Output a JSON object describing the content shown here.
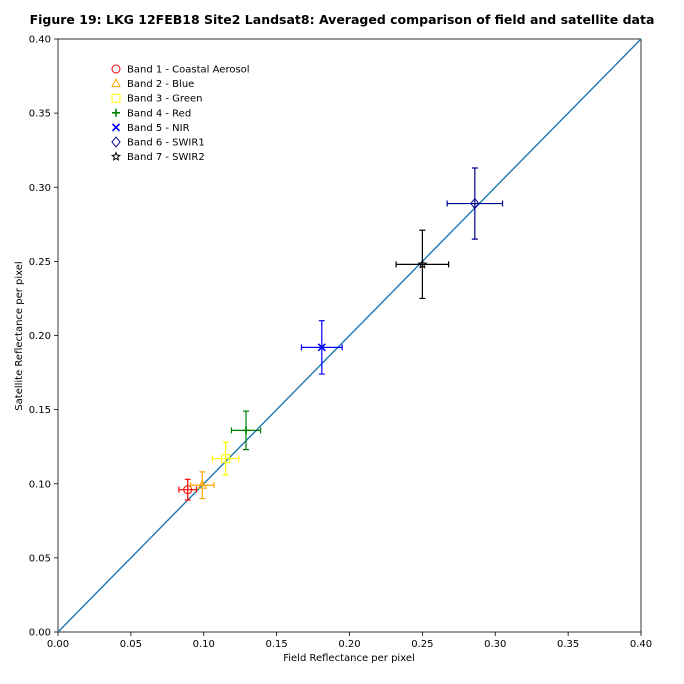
{
  "chart_data": {
    "type": "scatter",
    "title": "Figure 19: LKG 12FEB18 Site2 Landsat8: Averaged comparison of field and satellite data",
    "xlabel": "Field Reflectance per pixel",
    "ylabel": "Satellite Reflectance per pixel",
    "xlim": [
      0.0,
      0.4
    ],
    "ylim": [
      0.0,
      0.4
    ],
    "xticks": [
      "0.00",
      "0.05",
      "0.10",
      "0.15",
      "0.20",
      "0.25",
      "0.30",
      "0.35",
      "0.40"
    ],
    "yticks": [
      "0.00",
      "0.05",
      "0.10",
      "0.15",
      "0.20",
      "0.25",
      "0.30",
      "0.35",
      "0.40"
    ],
    "grid": false,
    "legend_position": "upper-left",
    "reference_line": {
      "from": [
        0.0,
        0.0
      ],
      "to": [
        0.4,
        0.4
      ],
      "color": "#1f77b4"
    },
    "series": [
      {
        "name": "Band 1 - Coastal Aerosol",
        "marker": "circle",
        "color": "#ff0000",
        "x": 0.089,
        "y": 0.096,
        "xerr": 0.006,
        "yerr": 0.007
      },
      {
        "name": "Band 2 - Blue",
        "marker": "triangle",
        "color": "#ffa500",
        "x": 0.099,
        "y": 0.099,
        "xerr": 0.008,
        "yerr": 0.009
      },
      {
        "name": "Band 3 - Green",
        "marker": "square",
        "color": "#ffff00",
        "x": 0.115,
        "y": 0.117,
        "xerr": 0.009,
        "yerr": 0.011
      },
      {
        "name": "Band 4 - Red",
        "marker": "plus",
        "color": "#008000",
        "x": 0.129,
        "y": 0.136,
        "xerr": 0.01,
        "yerr": 0.013
      },
      {
        "name": "Band 5 - NIR",
        "marker": "x",
        "color": "#0000ff",
        "x": 0.181,
        "y": 0.192,
        "xerr": 0.014,
        "yerr": 0.018
      },
      {
        "name": "Band 6 - SWIR1",
        "marker": "diamond",
        "color": "#00008b",
        "x": 0.286,
        "y": 0.289,
        "xerr": 0.019,
        "yerr": 0.024
      },
      {
        "name": "Band 7 - SWIR2",
        "marker": "star",
        "color": "#000000",
        "x": 0.25,
        "y": 0.248,
        "xerr": 0.018,
        "yerr": 0.023
      }
    ]
  }
}
